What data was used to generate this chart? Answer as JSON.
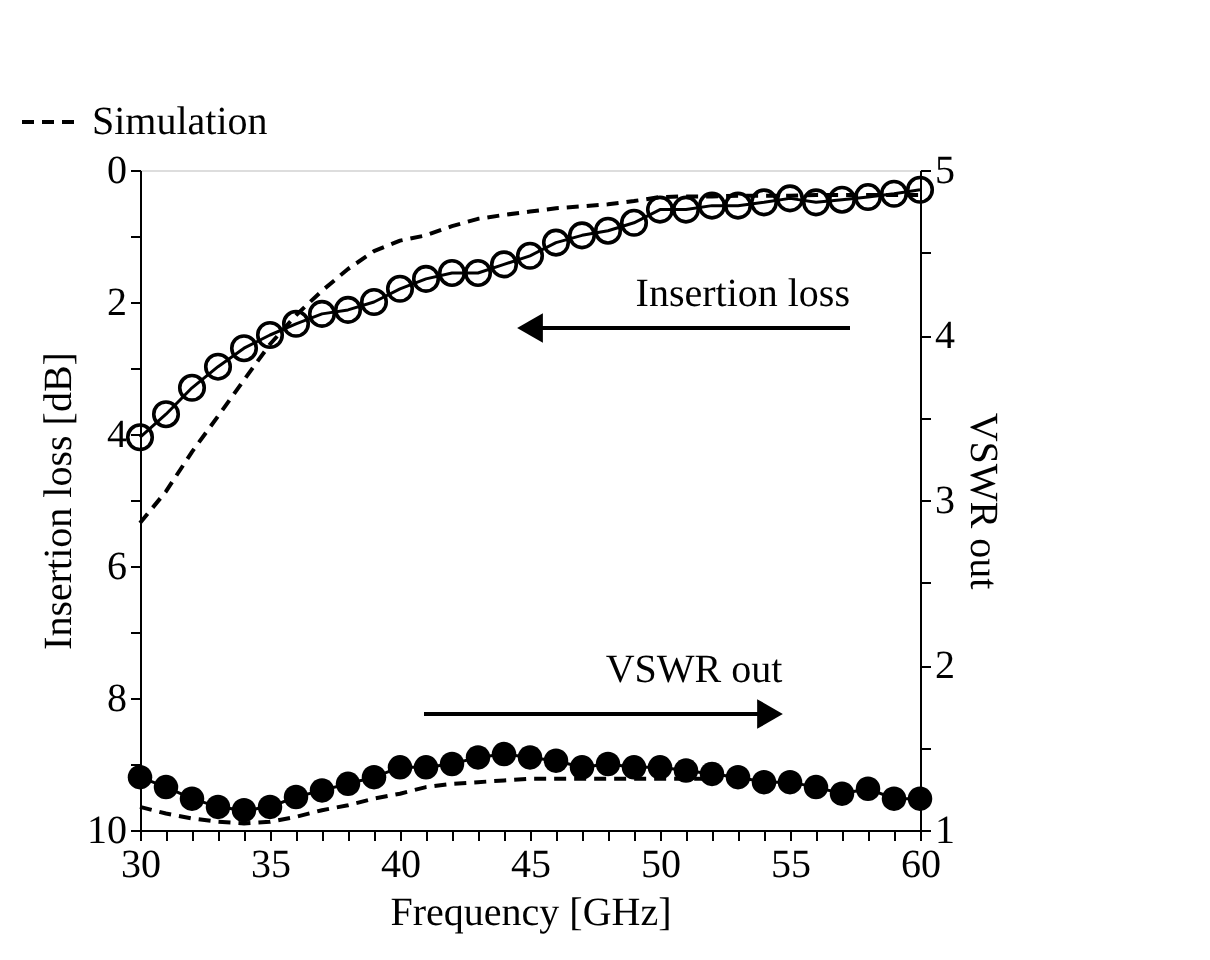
{
  "chart_data": {
    "type": "line",
    "xlabel": "Frequency  [GHz]",
    "ylabel": "Insertion loss [dB]",
    "y2label": "VSWR out",
    "x": [
      30,
      31,
      32,
      33,
      34,
      35,
      36,
      37,
      38,
      39,
      40,
      41,
      42,
      43,
      44,
      45,
      46,
      47,
      48,
      49,
      50,
      51,
      52,
      53,
      54,
      55,
      56,
      57,
      58,
      59,
      60
    ],
    "series": [
      {
        "color": "#000000",
        "marker": "circle",
        "line_style": "solid",
        "values": [
          4.05,
          3.7,
          3.3,
          2.98,
          2.7,
          2.5,
          2.33,
          2.18,
          2.12,
          2.0,
          1.8,
          1.65,
          1.56,
          1.56,
          1.43,
          1.3,
          1.1,
          0.99,
          0.92,
          0.8,
          0.6,
          0.6,
          0.54,
          0.54,
          0.49,
          0.43,
          0.49,
          0.45,
          0.41,
          0.36,
          0.3
        ]
      },
      {
        "name": "Simulation",
        "color": "#000000",
        "marker": "none",
        "line_style": "dashed",
        "values": [
          5.35,
          4.87,
          4.27,
          3.73,
          3.18,
          2.64,
          2.2,
          1.83,
          1.5,
          1.23,
          1.07,
          0.99,
          0.85,
          0.74,
          0.68,
          0.63,
          0.58,
          0.55,
          0.52,
          0.47,
          0.41,
          0.4,
          0.4,
          0.39,
          0.39,
          0.39,
          0.38,
          0.38,
          0.38,
          0.38,
          0.38
        ]
      },
      {
        "axis": "y2",
        "color": "#000000",
        "marker": "circle",
        "line_style": "solid",
        "values": [
          1.32,
          1.26,
          1.19,
          1.14,
          1.12,
          1.14,
          1.2,
          1.24,
          1.28,
          1.32,
          1.38,
          1.38,
          1.4,
          1.44,
          1.46,
          1.44,
          1.42,
          1.38,
          1.4,
          1.38,
          1.38,
          1.36,
          1.34,
          1.32,
          1.29,
          1.29,
          1.26,
          1.22,
          1.25,
          1.19,
          1.19
        ]
      },
      {
        "axis": "y2",
        "color": "#000000",
        "marker": "none",
        "line_style": "dashed",
        "x": [
          30,
          31,
          32,
          33,
          34,
          35,
          36,
          37,
          38,
          39,
          40,
          41,
          42,
          43,
          44,
          45,
          46,
          47,
          48,
          49,
          50,
          51,
          52
        ],
        "values": [
          1.14,
          1.1,
          1.07,
          1.05,
          1.04,
          1.05,
          1.08,
          1.12,
          1.15,
          1.19,
          1.22,
          1.26,
          1.28,
          1.29,
          1.3,
          1.31,
          1.31,
          1.31,
          1.31,
          1.31,
          1.31,
          1.31,
          1.31
        ]
      }
    ],
    "annotations": [
      "Insertion loss",
      "VSWR out"
    ],
    "xlim": [
      30,
      60
    ],
    "xticks": [
      30,
      {
        "value": 31,
        "label": null
      },
      {
        "value": 32,
        "label": null
      },
      {
        "value": 33,
        "label": null
      },
      {
        "value": 34,
        "label": null
      },
      35,
      {
        "value": 36,
        "label": null
      },
      {
        "value": 37,
        "label": null
      },
      {
        "value": 38,
        "label": null
      },
      {
        "value": 39,
        "label": null
      },
      40,
      {
        "value": 41,
        "label": null
      },
      {
        "value": 42,
        "label": null
      },
      {
        "value": 43,
        "label": null
      },
      {
        "value": 44,
        "label": null
      },
      45,
      {
        "value": 46,
        "label": null
      },
      {
        "value": 47,
        "label": null
      },
      {
        "value": 48,
        "label": null
      },
      {
        "value": 49,
        "label": null
      },
      50,
      {
        "value": 51,
        "label": null
      },
      {
        "value": 52,
        "label": null
      },
      {
        "value": 53,
        "label": null
      },
      {
        "value": 54,
        "label": null
      },
      55,
      {
        "value": 56,
        "label": null
      },
      {
        "value": 57,
        "label": null
      },
      {
        "value": 58,
        "label": null
      },
      {
        "value": 59,
        "label": null
      },
      60
    ],
    "ylim": [
      10,
      0
    ],
    "yticks": [
      0,
      {
        "value": 1,
        "label": null
      },
      2,
      {
        "value": 3,
        "label": null
      },
      4,
      {
        "value": 5,
        "label": null
      },
      6,
      {
        "value": 7,
        "label": null
      },
      8,
      {
        "value": 9,
        "label": null
      },
      10
    ],
    "y2lim": [
      1,
      5
    ],
    "y2ticks": [
      1,
      {
        "value": 1.5,
        "label": null
      },
      2,
      {
        "value": 2.5,
        "label": null
      },
      3,
      {
        "value": 3.5,
        "label": null
      },
      4,
      {
        "value": 4.5,
        "label": null
      },
      5
    ],
    "legend": "top left",
    "grid": false
  }
}
